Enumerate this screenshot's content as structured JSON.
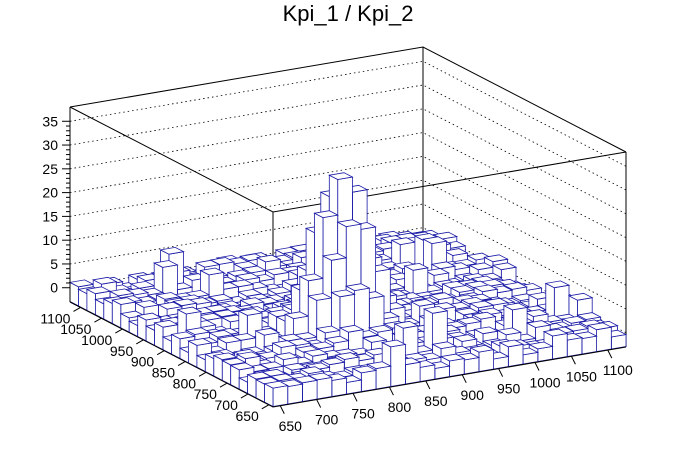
{
  "chart_data": {
    "type": "lego3d",
    "title": "Kpi_1 / Kpi_2",
    "x_ticks": [
      "650",
      "700",
      "750",
      "800",
      "850",
      "900",
      "950",
      "1000",
      "1050",
      "1100"
    ],
    "y_ticks": [
      "650",
      "700",
      "750",
      "800",
      "850",
      "900",
      "950",
      "1000",
      "1050",
      "1100"
    ],
    "z_ticks": [
      "0",
      "5",
      "10",
      "15",
      "20",
      "25",
      "30",
      "35"
    ],
    "xlim": [
      640,
      1125
    ],
    "ylim": [
      640,
      1125
    ],
    "zlim": [
      -3,
      38
    ],
    "peak": {
      "x": 835,
      "y": 815,
      "height": 33
    },
    "grid": true,
    "colors": {
      "bar_edge": "#1a1aa6",
      "bar_face": "#ffffff",
      "frame": "#000000",
      "grid": "#000000"
    }
  }
}
